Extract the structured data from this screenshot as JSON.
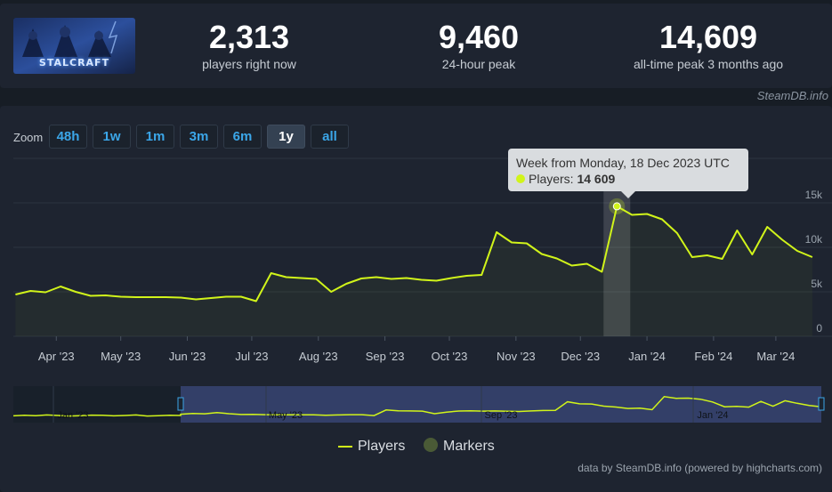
{
  "stats": [
    {
      "value": "2,313",
      "label": "players right now"
    },
    {
      "value": "9,460",
      "label": "24-hour peak"
    },
    {
      "value": "14,609",
      "label": "all-time peak 3 months ago"
    }
  ],
  "game": {
    "logo_text": "STALCRAFT"
  },
  "watermark": "SteamDB.info",
  "zoom": {
    "label": "Zoom",
    "buttons": [
      "48h",
      "1w",
      "1m",
      "3m",
      "6m",
      "1y",
      "all"
    ],
    "active": "1y"
  },
  "tooltip": {
    "title": "Week from Monday, 18 Dec 2023 UTC",
    "series_label": "Players:",
    "value": "14 609"
  },
  "legend": {
    "players": "Players",
    "markers": "Markers"
  },
  "credits": "data by SteamDB.info (powered by highcharts.com)",
  "colors": {
    "series": "#d1f41a",
    "background": "#1e2430",
    "grid": "#2c3440",
    "marker": "#4a5a36"
  },
  "chart_data": {
    "type": "line",
    "series": [
      {
        "name": "Players",
        "x": [
          "2023-03-13",
          "2023-03-20",
          "2023-03-27",
          "2023-04-03",
          "2023-04-10",
          "2023-04-17",
          "2023-04-24",
          "2023-05-01",
          "2023-05-08",
          "2023-05-15",
          "2023-05-22",
          "2023-05-29",
          "2023-06-05",
          "2023-06-12",
          "2023-06-19",
          "2023-06-26",
          "2023-07-03",
          "2023-07-10",
          "2023-07-17",
          "2023-07-24",
          "2023-07-31",
          "2023-08-07",
          "2023-08-14",
          "2023-08-21",
          "2023-08-28",
          "2023-09-04",
          "2023-09-11",
          "2023-09-18",
          "2023-09-25",
          "2023-10-02",
          "2023-10-09",
          "2023-10-16",
          "2023-10-23",
          "2023-10-30",
          "2023-11-06",
          "2023-11-13",
          "2023-11-20",
          "2023-11-27",
          "2023-12-04",
          "2023-12-11",
          "2023-12-18",
          "2023-12-25",
          "2024-01-01",
          "2024-01-08",
          "2024-01-15",
          "2024-01-22",
          "2024-01-29",
          "2024-02-05",
          "2024-02-12",
          "2024-02-19",
          "2024-02-26",
          "2024-03-04",
          "2024-03-11",
          "2024-03-18"
        ],
        "values": [
          4700,
          5100,
          4950,
          5600,
          5000,
          4550,
          4600,
          4450,
          4400,
          4400,
          4400,
          4350,
          4150,
          4300,
          4450,
          4450,
          3950,
          7100,
          6650,
          6550,
          6450,
          5000,
          5900,
          6500,
          6650,
          6450,
          6550,
          6350,
          6250,
          6550,
          6800,
          6900,
          11700,
          10550,
          10450,
          9250,
          8750,
          7950,
          8150,
          7250,
          14609,
          13650,
          13750,
          13150,
          11600,
          8900,
          9100,
          8700,
          11900,
          9200,
          12300,
          10850,
          9600,
          8900
        ]
      }
    ],
    "x_ticks": [
      "Apr '23",
      "May '23",
      "Jun '23",
      "Jul '23",
      "Aug '23",
      "Sep '23",
      "Oct '23",
      "Nov '23",
      "Dec '23",
      "Jan '24",
      "Feb '24",
      "Mar '24"
    ],
    "y_ticks": [
      "0",
      "5k",
      "10k",
      "15k"
    ],
    "ylim": [
      0,
      20000
    ],
    "highlight_x": "2023-12-18",
    "navigator_labels": [
      "Jan '23",
      "May '23",
      "Sep '23",
      "Jan '24"
    ],
    "grid": true,
    "legend_position": "bottom-center"
  }
}
